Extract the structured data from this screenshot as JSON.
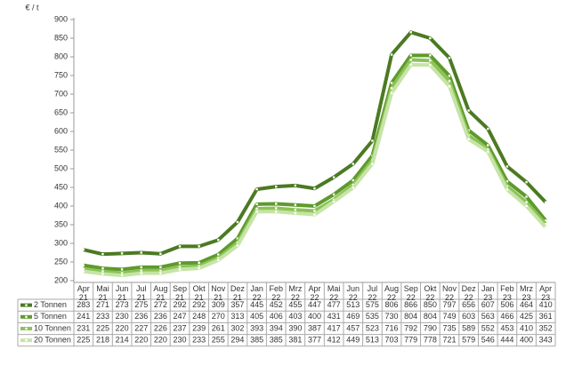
{
  "chart_data": {
    "type": "line",
    "y_unit_label": "€ / t",
    "categories": [
      "Apr 21",
      "Mai 21",
      "Jun 21",
      "Jul 21",
      "Aug 21",
      "Sep 21",
      "Okt 21",
      "Nov 21",
      "Dez 21",
      "Jan 22",
      "Feb 22",
      "Mrz 22",
      "Apr 22",
      "Mai 22",
      "Jun 22",
      "Jul 22",
      "Aug 22",
      "Sep 22",
      "Okt 22",
      "Nov 22",
      "Dez 22",
      "Jan 23",
      "Feb 23",
      "Mrz 23",
      "Apr 23"
    ],
    "series": [
      {
        "name": "2 Tonnen",
        "color": "#4b7a22",
        "values": [
          283,
          271,
          273,
          275,
          272,
          292,
          292,
          309,
          357,
          445,
          452,
          455,
          447,
          477,
          513,
          575,
          806,
          866,
          850,
          797,
          656,
          607,
          506,
          464,
          410
        ]
      },
      {
        "name": "5 Tonnen",
        "color": "#5e9a2c",
        "values": [
          241,
          233,
          230,
          236,
          236,
          247,
          248,
          270,
          313,
          405,
          406,
          403,
          400,
          431,
          469,
          535,
          730,
          804,
          804,
          749,
          603,
          563,
          466,
          425,
          361
        ]
      },
      {
        "name": "10 Tonnen",
        "color": "#8cc257",
        "values": [
          231,
          225,
          220,
          227,
          226,
          237,
          239,
          261,
          302,
          393,
          394,
          390,
          387,
          417,
          457,
          523,
          716,
          792,
          790,
          735,
          589,
          552,
          453,
          410,
          352
        ]
      },
      {
        "name": "20 Tonnen",
        "color": "#c6e4a6",
        "values": [
          225,
          218,
          214,
          220,
          220,
          230,
          233,
          255,
          294,
          385,
          385,
          381,
          377,
          412,
          449,
          513,
          703,
          779,
          778,
          721,
          579,
          546,
          444,
          400,
          343
        ]
      }
    ],
    "ylim": [
      200,
      900
    ],
    "yticks": [
      200,
      250,
      300,
      350,
      400,
      450,
      500,
      550,
      600,
      650,
      700,
      750,
      800,
      850,
      900
    ],
    "grid": false,
    "data_table": true
  }
}
